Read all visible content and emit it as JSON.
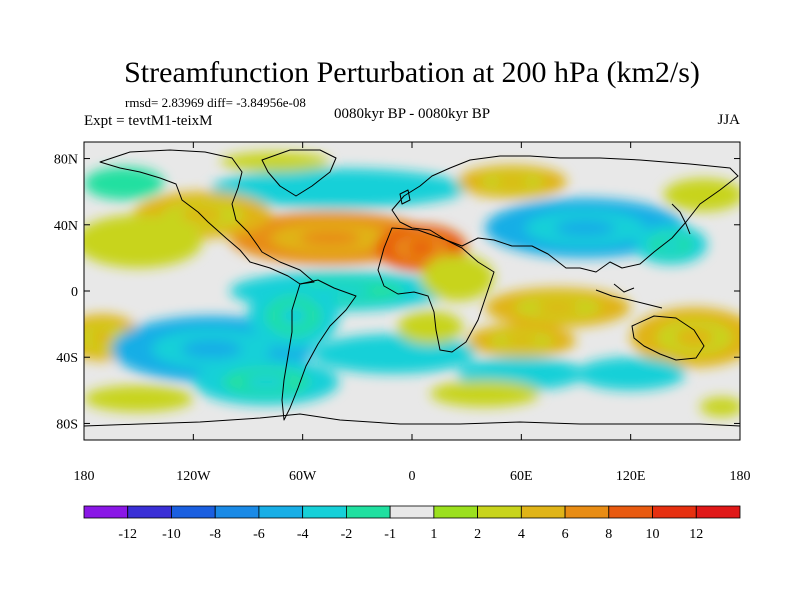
{
  "chart_data": {
    "type": "heatmap",
    "title": "Streamfunction Perturbation at 200 hPa (km2/s)",
    "stats_line": "rmsd= 2.83969 diff= -3.84956e-08",
    "left_label": "Expt = tevtM1-teixM",
    "center_label": "0080kyr BP - 0080kyr BP",
    "right_label": "JJA",
    "projection": "cylindrical equidistant",
    "xlim": [
      -180,
      180
    ],
    "ylim": [
      -90,
      90
    ],
    "x_ticks": [
      {
        "value": -180,
        "label": "180"
      },
      {
        "value": -120,
        "label": "120W"
      },
      {
        "value": -60,
        "label": "60W"
      },
      {
        "value": 0,
        "label": "0"
      },
      {
        "value": 60,
        "label": "60E"
      },
      {
        "value": 120,
        "label": "120E"
      },
      {
        "value": 180,
        "label": "180"
      }
    ],
    "y_ticks": [
      {
        "value": 80,
        "label": "80N"
      },
      {
        "value": 40,
        "label": "40N"
      },
      {
        "value": 0,
        "label": "0"
      },
      {
        "value": -40,
        "label": "40S"
      },
      {
        "value": -80,
        "label": "80S"
      }
    ],
    "colorbar": {
      "labels": [
        "-12",
        "-10",
        "-8",
        "-6",
        "-4",
        "-2",
        "-1",
        "1",
        "2",
        "4",
        "6",
        "8",
        "10",
        "12"
      ],
      "colors": [
        "#8a17e6",
        "#3a2fd6",
        "#1a5fe0",
        "#1a8ae6",
        "#18aee6",
        "#16d0d8",
        "#20e0a0",
        "#e8e8e8",
        "#9be01e",
        "#c8d41c",
        "#e0b418",
        "#e88c14",
        "#e85a10",
        "#e63010",
        "#e01818"
      ]
    },
    "regions": [
      {
        "name": "arctic-neg-arc",
        "lon": -40,
        "lat": 62,
        "rlon": 70,
        "rlat": 12,
        "value": -3
      },
      {
        "name": "n-atlantic-pos",
        "lon": -45,
        "lat": 32,
        "rlon": 55,
        "rlat": 16,
        "value": 6
      },
      {
        "name": "n-africa-pos",
        "lon": 5,
        "lat": 26,
        "rlon": 25,
        "rlat": 14,
        "value": 8
      },
      {
        "name": "n-america-pos",
        "lon": -115,
        "lat": 46,
        "rlon": 38,
        "rlat": 14,
        "value": 5
      },
      {
        "name": "ne-pacific-pos",
        "lon": -150,
        "lat": 30,
        "rlon": 35,
        "rlat": 16,
        "value": 3
      },
      {
        "name": "n-pacific-neg-arc",
        "lon": -158,
        "lat": 65,
        "rlon": 22,
        "rlat": 10,
        "value": -2
      },
      {
        "name": "asia-neg",
        "lon": 95,
        "lat": 38,
        "rlon": 55,
        "rlat": 18,
        "value": -6
      },
      {
        "name": "siberia-pos",
        "lon": 55,
        "lat": 66,
        "rlon": 30,
        "rlat": 10,
        "value": 5
      },
      {
        "name": "arctic-pos-left",
        "lon": -75,
        "lat": 78,
        "rlon": 30,
        "rlat": 6,
        "value": 3
      },
      {
        "name": "w-pacific-neg",
        "lon": 142,
        "lat": 28,
        "rlon": 20,
        "rlat": 12,
        "value": -4
      },
      {
        "name": "ne-asia-pos",
        "lon": 160,
        "lat": 58,
        "rlon": 22,
        "rlat": 10,
        "value": 2
      },
      {
        "name": "trop-atlantic-neg",
        "lon": -40,
        "lat": 0,
        "rlon": 60,
        "rlat": 12,
        "value": -4
      },
      {
        "name": "africa-e-pos",
        "lon": 25,
        "lat": 8,
        "rlon": 20,
        "rlat": 14,
        "value": 2
      },
      {
        "name": "indian-ocean-pos",
        "lon": 80,
        "lat": -10,
        "rlon": 40,
        "rlat": 12,
        "value": 4
      },
      {
        "name": "w-pacific-s-pos",
        "lon": 155,
        "lat": -28,
        "rlon": 35,
        "rlat": 18,
        "value": 5
      },
      {
        "name": "s-pacific-w-pos",
        "lon": -170,
        "lat": -28,
        "rlon": 22,
        "rlat": 14,
        "value": 5
      },
      {
        "name": "s-pacific-neg",
        "lon": -110,
        "lat": -35,
        "rlon": 55,
        "rlat": 20,
        "value": -5
      },
      {
        "name": "s-pacific-neg-2",
        "lon": -80,
        "lat": -55,
        "rlon": 40,
        "rlat": 14,
        "value": -4
      },
      {
        "name": "s-atlantic-neg",
        "lon": -10,
        "lat": -38,
        "rlon": 45,
        "rlat": 12,
        "value": -3
      },
      {
        "name": "s-america-neg",
        "lon": -65,
        "lat": -15,
        "rlon": 25,
        "rlat": 20,
        "value": -4
      },
      {
        "name": "s-indian-neg",
        "lon": 60,
        "lat": -50,
        "rlon": 35,
        "rlat": 10,
        "value": -3
      },
      {
        "name": "s-indian-pos",
        "lon": 60,
        "lat": -30,
        "rlon": 30,
        "rlat": 10,
        "value": 4
      },
      {
        "name": "antarctic-pos",
        "lon": 40,
        "lat": -62,
        "rlon": 30,
        "rlat": 8,
        "value": 2
      },
      {
        "name": "aus-s-neg",
        "lon": 120,
        "lat": -50,
        "rlon": 30,
        "rlat": 10,
        "value": -3
      },
      {
        "name": "antarctic-pos-w",
        "lon": -150,
        "lat": -65,
        "rlon": 30,
        "rlat": 8,
        "value": 2
      },
      {
        "name": "s-africa-pos",
        "lon": 10,
        "lat": -22,
        "rlon": 18,
        "rlat": 10,
        "value": 2
      },
      {
        "name": "far-e-pacific-pos",
        "lon": 170,
        "lat": -70,
        "rlon": 12,
        "rlat": 6,
        "value": 2
      }
    ]
  }
}
